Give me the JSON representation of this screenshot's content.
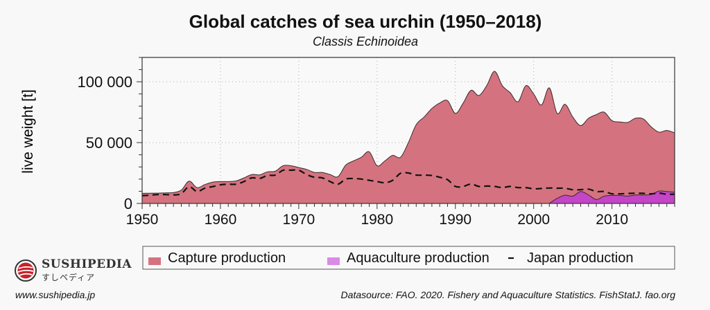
{
  "chart_data": {
    "type": "area",
    "title": "Global catches of sea urchin (1950–2018)",
    "subtitle": "Classis Echinoidea",
    "xlabel": "",
    "ylabel": "live weight [t]",
    "xlim": [
      1950,
      2018
    ],
    "ylim": [
      0,
      120000
    ],
    "x_ticks": [
      "1950",
      "1960",
      "1970",
      "1980",
      "1990",
      "2000",
      "2010"
    ],
    "y_ticks": [
      "0",
      "50 000",
      "100 000"
    ],
    "grid": true,
    "legend_position": "bottom",
    "series": [
      {
        "name": "Capture production",
        "style": "area",
        "color": "#d4737f",
        "x_start": 1950,
        "values": [
          8300,
          8400,
          8500,
          8700,
          9000,
          11000,
          18300,
          13000,
          15500,
          17500,
          18000,
          18000,
          18500,
          21000,
          23800,
          23500,
          26000,
          26500,
          31000,
          31000,
          29500,
          28000,
          25500,
          25500,
          23800,
          22000,
          31500,
          35000,
          38000,
          42500,
          31000,
          35000,
          39500,
          38000,
          50000,
          64800,
          71000,
          78000,
          82600,
          84500,
          74000,
          82600,
          93000,
          88700,
          96800,
          108600,
          96800,
          91000,
          83600,
          96800,
          90000,
          81000,
          95000,
          74000,
          81500,
          71000,
          64000,
          70000,
          73000,
          75000,
          68000,
          67000,
          66600,
          70000,
          69500,
          63000,
          58600,
          60000,
          58000
        ]
      },
      {
        "name": "Aquaculture production",
        "style": "area",
        "color": "#c445c8",
        "legend_color": "#d98be6",
        "x_start": 2002,
        "values": [
          0,
          4200,
          6800,
          6000,
          9800,
          7000,
          3200,
          6000,
          6600,
          6600,
          6000,
          7000,
          7000,
          7300,
          10200,
          9800,
          9300
        ]
      },
      {
        "name": "Japan production",
        "style": "dashed-line",
        "color": "#111111",
        "x_start": 1950,
        "values": [
          6400,
          6800,
          7300,
          7300,
          7000,
          8000,
          13800,
          9800,
          12500,
          13800,
          15300,
          15800,
          15800,
          18000,
          21000,
          20500,
          23000,
          23300,
          27300,
          27300,
          27300,
          23800,
          21500,
          21000,
          18000,
          15800,
          20000,
          20500,
          20000,
          19000,
          18000,
          17000,
          19000,
          24800,
          25000,
          23300,
          23300,
          23000,
          21500,
          19500,
          14000,
          14000,
          16000,
          14000,
          14300,
          14000,
          13000,
          14000,
          13000,
          13000,
          12000,
          12300,
          12700,
          12500,
          12500,
          11300,
          11300,
          11800,
          9800,
          9800,
          7900,
          7900,
          8200,
          8400,
          8300,
          7900,
          8500,
          7500,
          7600
        ]
      }
    ]
  },
  "branding": {
    "name": "Sushipedia",
    "name_jp": "すしペディア",
    "website": "www.sushipedia.jp"
  },
  "source": "Datasource: FAO. 2020. Fishery and Aquaculture Statistics. FishStatJ. fao.org"
}
